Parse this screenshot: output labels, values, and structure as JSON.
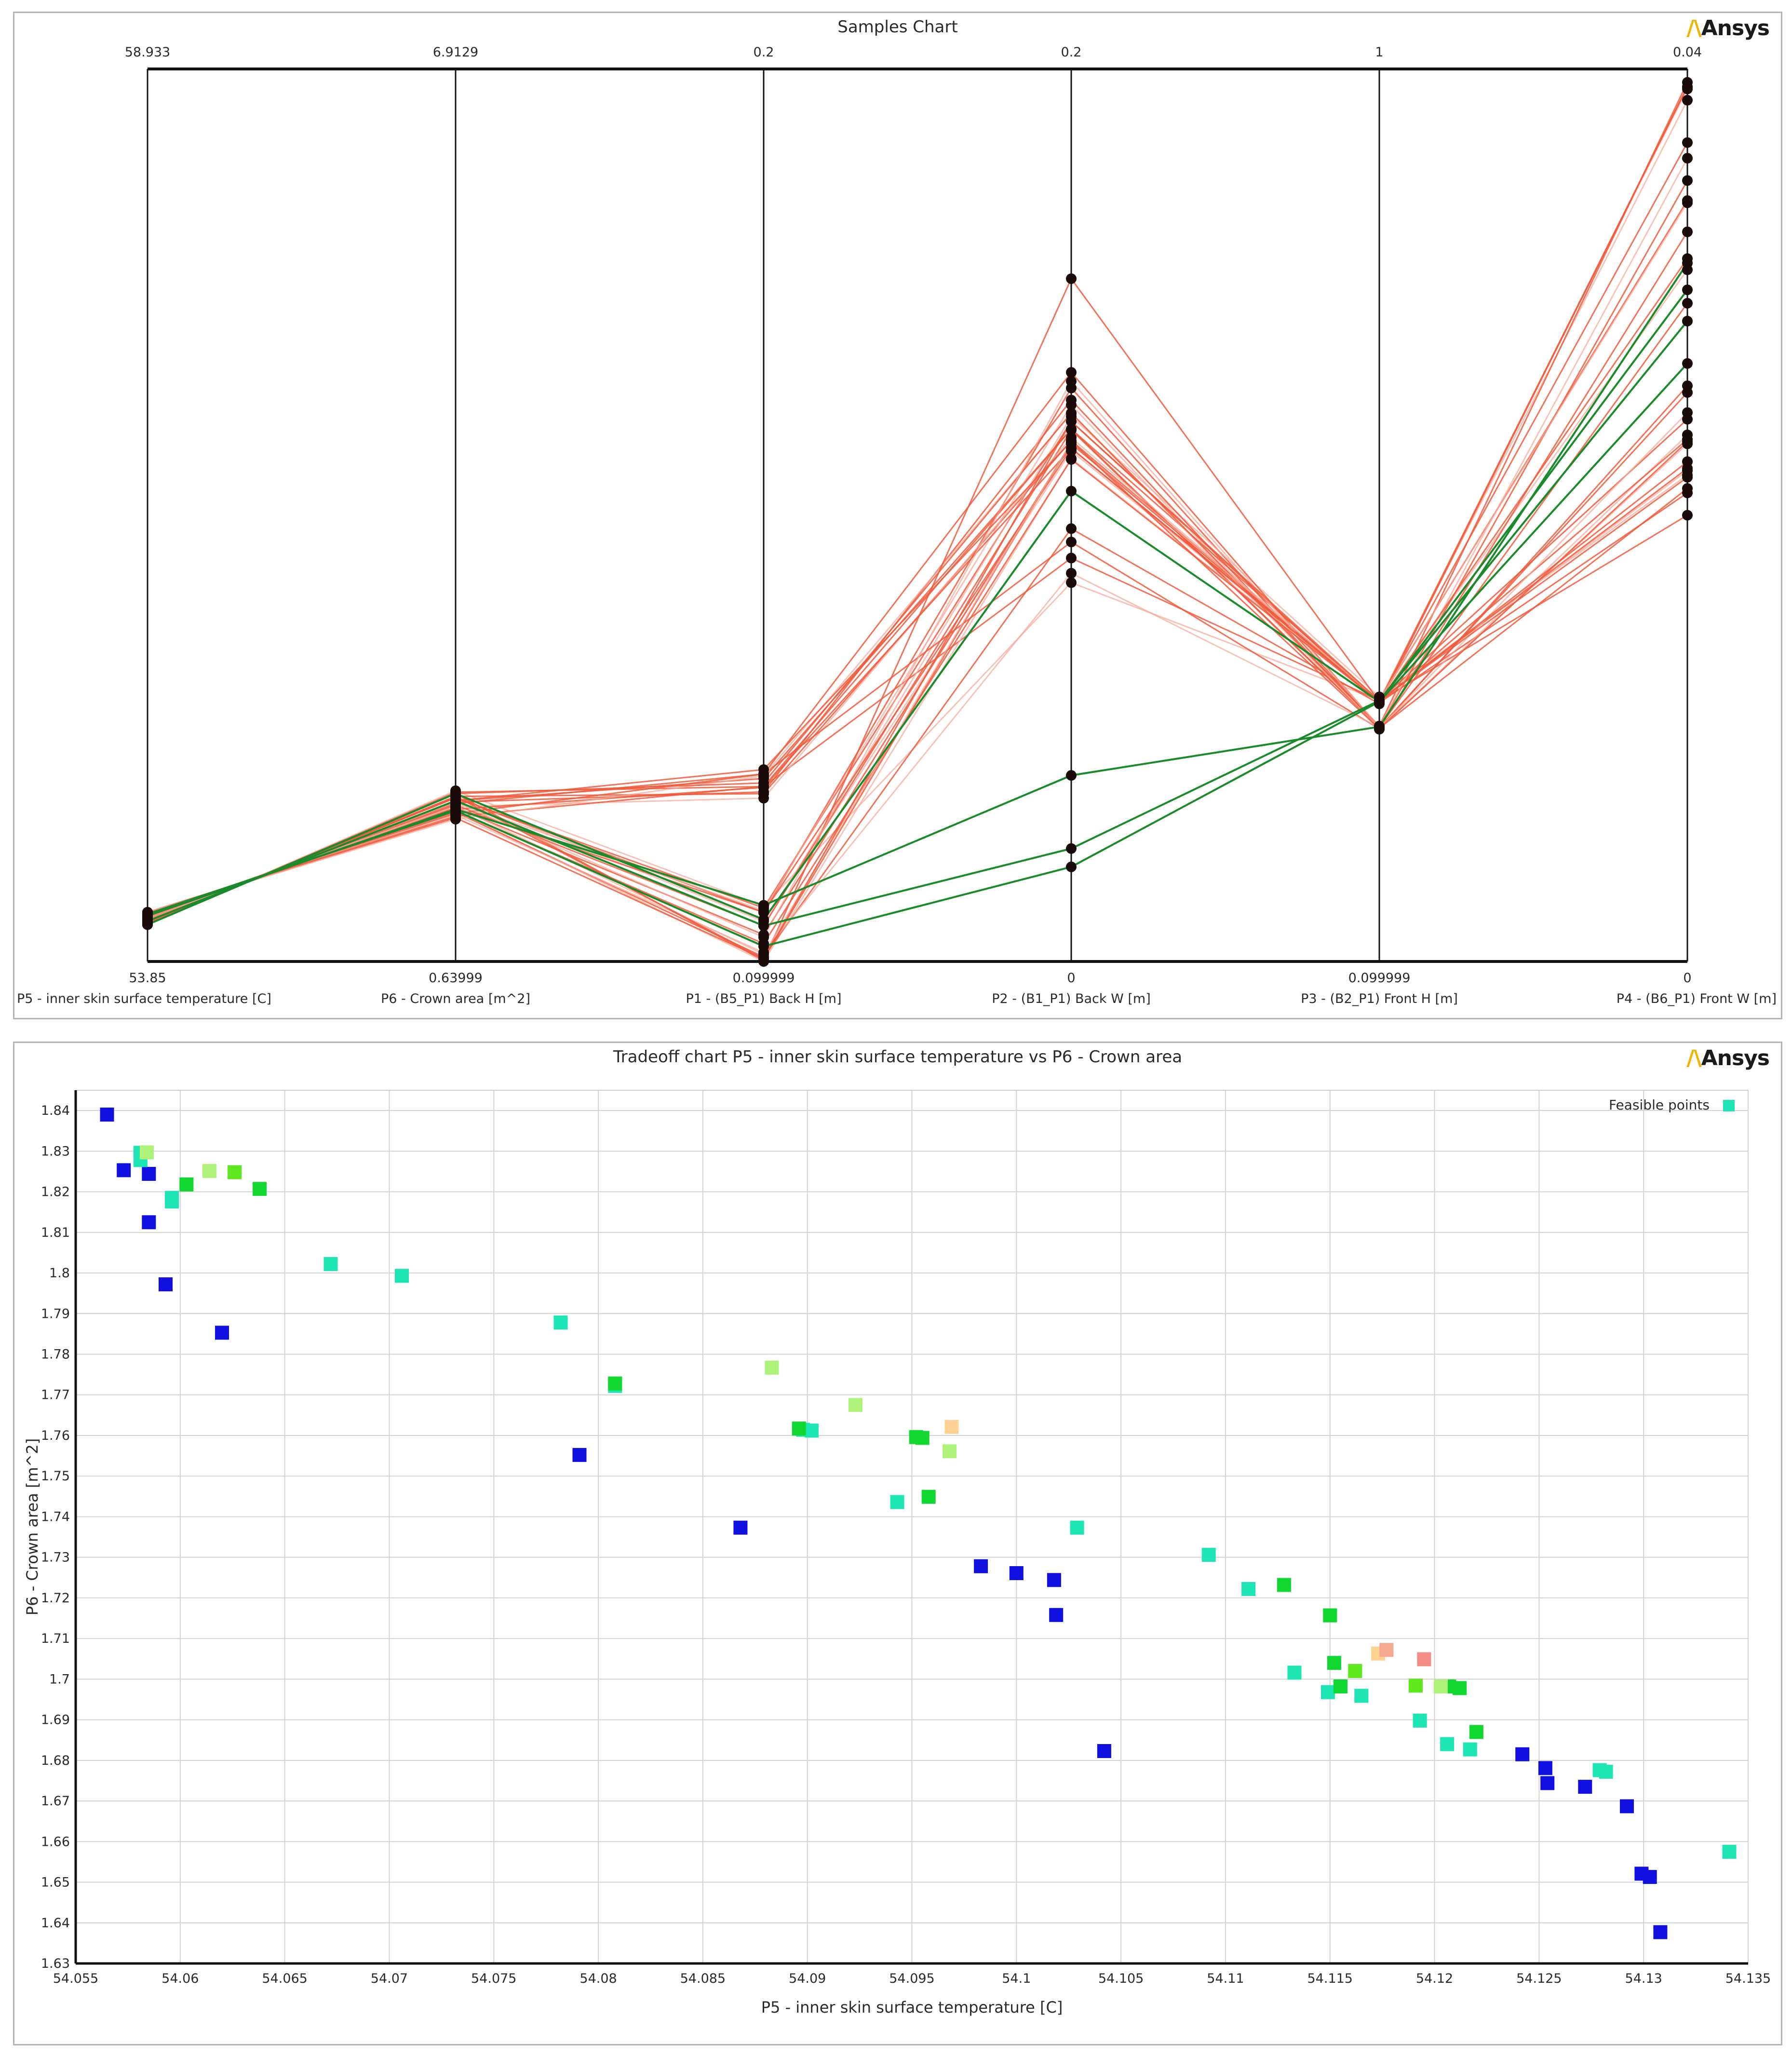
{
  "samples_chart": {
    "title": "Samples Chart",
    "logo": "Ansys",
    "line_colors": {
      "sample": "#ef5a3c",
      "sample_faint": "#f6a898",
      "highlight": "#1a8a2a",
      "point": "#1a0a0a"
    },
    "axes": [
      {
        "label": "P5 - inner skin surface temperature  [C]",
        "max": "58.933",
        "min": "53.85"
      },
      {
        "label": "P6 - Crown area  [m^2]",
        "max": "6.9129",
        "min": "0.63999"
      },
      {
        "label": "P1 - (B5_P1) Back H  [m]",
        "max": "0.2",
        "min": "0.099999"
      },
      {
        "label": "P2 - (B1_P1) Back W  [m]",
        "max": "0.2",
        "min": "0"
      },
      {
        "label": "P3 - (B2_P1) Front H  [m]",
        "max": "1",
        "min": "0.099999"
      },
      {
        "label": "P4 - (B6_P1) Front W  [m]",
        "max": "0.04",
        "min": "0"
      }
    ]
  },
  "chart_data": [
    {
      "type": "parallel-coordinates",
      "title": "Samples Chart",
      "axes": [
        {
          "name": "P5 - inner skin surface temperature  [C]",
          "range": [
            53.85,
            58.933
          ]
        },
        {
          "name": "P6 - Crown area  [m^2]",
          "range": [
            0.63999,
            6.9129
          ]
        },
        {
          "name": "P1 - (B5_P1) Back H  [m]",
          "range": [
            0.099999,
            0.2
          ]
        },
        {
          "name": "P2 - (B1_P1) Back W  [m]",
          "range": [
            0,
            0.2
          ]
        },
        {
          "name": "P3 - (B2_P1) Front H  [m]",
          "range": [
            0.099999,
            1
          ]
        },
        {
          "name": "P4 - (B6_P1) Front W  [m]",
          "range": [
            0,
            0.04
          ]
        }
      ],
      "samples": [
        [
          54.06,
          1.84,
          0.1062,
          0.0849,
          0.3633,
          0.0391
        ],
        [
          54.06,
          1.83,
          0.1196,
          0.0904,
          0.3631,
          0.0341
        ],
        [
          54.07,
          1.8,
          0.1188,
          0.1167,
          0.362,
          0.0367
        ],
        [
          54.07,
          1.8,
          0.1045,
          0.1144,
          0.3625,
          0.031
        ],
        [
          54.08,
          1.79,
          0.106,
          0.121,
          0.3608,
          0.021
        ],
        [
          54.08,
          1.79,
          0.1055,
          0.1285,
          0.3353,
          0.0212
        ],
        [
          54.09,
          1.77,
          0.104,
          0.1221,
          0.3668,
          0.0218
        ],
        [
          54.09,
          1.77,
          0.1205,
          0.1193,
          0.3363,
          0.0295
        ],
        [
          54.09,
          1.76,
          0.119,
          0.1258,
          0.335,
          0.0327
        ],
        [
          54.1,
          1.76,
          0.1057,
          0.1247,
          0.3342,
          0.0236
        ],
        [
          54.1,
          1.75,
          0.121,
          0.132,
          0.3361,
          0.035
        ],
        [
          54.1,
          1.74,
          0.104,
          0.1191,
          0.3358,
          0.0255
        ],
        [
          54.11,
          1.73,
          0.1183,
          0.1174,
          0.3625,
          0.0386
        ],
        [
          54.11,
          1.72,
          0.103,
          0.116,
          0.3627,
          0.02
        ],
        [
          54.11,
          1.71,
          0.1195,
          0.115,
          0.363,
          0.0243
        ],
        [
          54.12,
          1.7,
          0.1,
          0.1127,
          0.3632,
          0.022
        ],
        [
          54.12,
          1.69,
          0.1005,
          0.097,
          0.3598,
          0.0392
        ],
        [
          54.12,
          1.68,
          0.121,
          0.094,
          0.3346,
          0.0258
        ],
        [
          54.13,
          1.67,
          0.101,
          0.087,
          0.336,
          0.0232
        ],
        [
          54.13,
          1.66,
          0.1196,
          0.1193,
          0.363,
          0.0221
        ],
        [
          54.13,
          1.65,
          0.1003,
          0.1163,
          0.3612,
          0.0234
        ],
        [
          54.13,
          1.64,
          0.1208,
          0.1228,
          0.3354,
          0.0246
        ],
        [
          54.06,
          1.82,
          0.1001,
          0.153,
          0.362,
          0.0392
        ],
        [
          54.06,
          1.82,
          0.12,
          0.1229,
          0.3374,
          0.0394
        ],
        [
          54.09,
          1.76,
          0.1027,
          0.13,
          0.3368,
          0.036
        ],
        [
          54.12,
          1.7,
          0.102,
          0.1125,
          0.362,
          0.0224
        ],
        [
          54.11,
          1.72,
          0.1055,
          0.115,
          0.3617,
          0.0315
        ],
        [
          54.1,
          1.73,
          0.1008,
          0.1163,
          0.3636,
          0.034
        ],
        [
          54.08,
          1.77,
          0.1215,
          0.1166,
          0.3346,
          0.0233
        ],
        [
          54.07,
          1.8,
          0.1003,
          0.121,
          0.363,
          0.0217
        ]
      ],
      "highlighted": [
        [
          54.06,
          1.82,
          0.1047,
          0.1054,
          0.362,
          0.0268
        ],
        [
          54.08,
          1.77,
          0.104,
          0.0253,
          0.3631,
          0.0287
        ],
        [
          54.11,
          1.71,
          0.1063,
          0.0417,
          0.3367,
          0.0313
        ],
        [
          54.12,
          1.7,
          0.1017,
          0.0212,
          0.362,
          0.0301
        ]
      ]
    },
    {
      "type": "scatter",
      "title": "Tradeoff chart P5 - inner skin surface temperature vs P6 - Crown area",
      "xlabel": "P5 - inner skin surface temperature  [C]",
      "ylabel": "P6 - Crown area  [m^2]",
      "xlim": [
        54.055,
        54.135
      ],
      "ylim": [
        1.63,
        1.845
      ],
      "xticks": [
        54.055,
        54.06,
        54.065,
        54.07,
        54.075,
        54.08,
        54.085,
        54.09,
        54.095,
        54.1,
        54.105,
        54.11,
        54.115,
        54.12,
        54.125,
        54.13,
        54.135
      ],
      "yticks": [
        1.63,
        1.64,
        1.65,
        1.66,
        1.67,
        1.68,
        1.69,
        1.7,
        1.71,
        1.72,
        1.73,
        1.74,
        1.75,
        1.76,
        1.77,
        1.78,
        1.79,
        1.8,
        1.81,
        1.82,
        1.83,
        1.84
      ],
      "legend": {
        "label": "Feasible points",
        "color": "#1ee5b4",
        "position": "top-right"
      },
      "grid": true,
      "points": [
        {
          "x": 54.0565,
          "y": 1.839,
          "color": "#1010e0"
        },
        {
          "x": 54.0573,
          "y": 1.8253,
          "color": "#1010e0"
        },
        {
          "x": 54.0585,
          "y": 1.8244,
          "color": "#1010e0"
        },
        {
          "x": 54.0585,
          "y": 1.8125,
          "color": "#1010e0"
        },
        {
          "x": 54.0593,
          "y": 1.7972,
          "color": "#1010e0"
        },
        {
          "x": 54.062,
          "y": 1.7853,
          "color": "#1010e0"
        },
        {
          "x": 54.0791,
          "y": 1.7552,
          "color": "#1010e0"
        },
        {
          "x": 54.0868,
          "y": 1.7373,
          "color": "#1010e0"
        },
        {
          "x": 54.0983,
          "y": 1.7278,
          "color": "#1010e0"
        },
        {
          "x": 54.1,
          "y": 1.7261,
          "color": "#1010e0"
        },
        {
          "x": 54.1018,
          "y": 1.7244,
          "color": "#1010e0"
        },
        {
          "x": 54.1019,
          "y": 1.7158,
          "color": "#1010e0"
        },
        {
          "x": 54.1042,
          "y": 1.6823,
          "color": "#1010e0"
        },
        {
          "x": 54.1242,
          "y": 1.6815,
          "color": "#1010e0"
        },
        {
          "x": 54.1253,
          "y": 1.6781,
          "color": "#1010e0"
        },
        {
          "x": 54.1254,
          "y": 1.6744,
          "color": "#1010e0"
        },
        {
          "x": 54.1272,
          "y": 1.6735,
          "color": "#1010e0"
        },
        {
          "x": 54.1292,
          "y": 1.6687,
          "color": "#1010e0"
        },
        {
          "x": 54.1299,
          "y": 1.6521,
          "color": "#1010e0"
        },
        {
          "x": 54.1303,
          "y": 1.6513,
          "color": "#1010e0"
        },
        {
          "x": 54.1308,
          "y": 1.6377,
          "color": "#1010e0"
        },
        {
          "x": 54.0581,
          "y": 1.8296,
          "color": "#1ee5b4"
        },
        {
          "x": 54.0581,
          "y": 1.8278,
          "color": "#1ee5b4"
        },
        {
          "x": 54.0596,
          "y": 1.8185,
          "color": "#1ee5b4"
        },
        {
          "x": 54.0596,
          "y": 1.8176,
          "color": "#1ee5b4"
        },
        {
          "x": 54.0672,
          "y": 1.8022,
          "color": "#1ee5b4"
        },
        {
          "x": 54.0706,
          "y": 1.7993,
          "color": "#1ee5b4"
        },
        {
          "x": 54.0782,
          "y": 1.7878,
          "color": "#1ee5b4"
        },
        {
          "x": 54.0808,
          "y": 1.7722,
          "color": "#1ee5b4"
        },
        {
          "x": 54.0898,
          "y": 1.7614,
          "color": "#1ee5b4"
        },
        {
          "x": 54.0902,
          "y": 1.7612,
          "color": "#1ee5b4"
        },
        {
          "x": 54.0943,
          "y": 1.7436,
          "color": "#1ee5b4"
        },
        {
          "x": 54.1029,
          "y": 1.7373,
          "color": "#1ee5b4"
        },
        {
          "x": 54.1092,
          "y": 1.7306,
          "color": "#1ee5b4"
        },
        {
          "x": 54.1111,
          "y": 1.7222,
          "color": "#1ee5b4"
        },
        {
          "x": 54.1133,
          "y": 1.7016,
          "color": "#1ee5b4"
        },
        {
          "x": 54.1149,
          "y": 1.6968,
          "color": "#1ee5b4"
        },
        {
          "x": 54.1165,
          "y": 1.6959,
          "color": "#1ee5b4"
        },
        {
          "x": 54.1193,
          "y": 1.6898,
          "color": "#1ee5b4"
        },
        {
          "x": 54.1206,
          "y": 1.684,
          "color": "#1ee5b4"
        },
        {
          "x": 54.1217,
          "y": 1.6827,
          "color": "#1ee5b4"
        },
        {
          "x": 54.1279,
          "y": 1.6776,
          "color": "#1ee5b4"
        },
        {
          "x": 54.1282,
          "y": 1.6772,
          "color": "#1ee5b4"
        },
        {
          "x": 54.1341,
          "y": 1.6575,
          "color": "#1ee5b4"
        },
        {
          "x": 54.0603,
          "y": 1.8218,
          "color": "#10d830"
        },
        {
          "x": 54.0638,
          "y": 1.8207,
          "color": "#10d830"
        },
        {
          "x": 54.0808,
          "y": 1.7728,
          "color": "#10d830"
        },
        {
          "x": 54.0896,
          "y": 1.7617,
          "color": "#10d830"
        },
        {
          "x": 54.0952,
          "y": 1.7596,
          "color": "#10d830"
        },
        {
          "x": 54.0955,
          "y": 1.7594,
          "color": "#10d830"
        },
        {
          "x": 54.0958,
          "y": 1.7449,
          "color": "#10d830"
        },
        {
          "x": 54.1128,
          "y": 1.7232,
          "color": "#10d830"
        },
        {
          "x": 54.115,
          "y": 1.7157,
          "color": "#10d830"
        },
        {
          "x": 54.1152,
          "y": 1.704,
          "color": "#10d830"
        },
        {
          "x": 54.1155,
          "y": 1.6982,
          "color": "#10d830"
        },
        {
          "x": 54.1207,
          "y": 1.6982,
          "color": "#10d830"
        },
        {
          "x": 54.1212,
          "y": 1.6978,
          "color": "#10d830"
        },
        {
          "x": 54.122,
          "y": 1.687,
          "color": "#10d830"
        },
        {
          "x": 54.0626,
          "y": 1.8248,
          "color": "#5ee81e"
        },
        {
          "x": 54.1162,
          "y": 1.702,
          "color": "#5ee81e"
        },
        {
          "x": 54.1191,
          "y": 1.6984,
          "color": "#5ee81e"
        },
        {
          "x": 54.0584,
          "y": 1.8297,
          "color": "#aef27a"
        },
        {
          "x": 54.0614,
          "y": 1.8251,
          "color": "#aef27a"
        },
        {
          "x": 54.0883,
          "y": 1.7767,
          "color": "#aef27a"
        },
        {
          "x": 54.0923,
          "y": 1.7675,
          "color": "#aef27a"
        },
        {
          "x": 54.0968,
          "y": 1.7561,
          "color": "#aef27a"
        },
        {
          "x": 54.1203,
          "y": 1.6982,
          "color": "#aef27a"
        },
        {
          "x": 54.0969,
          "y": 1.7621,
          "color": "#ffd294"
        },
        {
          "x": 54.1173,
          "y": 1.7063,
          "color": "#ffd294"
        },
        {
          "x": 54.1177,
          "y": 1.7072,
          "color": "#f7a890"
        },
        {
          "x": 54.1195,
          "y": 1.7049,
          "color": "#f48c86"
        }
      ]
    }
  ],
  "tradeoff_chart": {
    "title": "Tradeoff chart P5 - inner skin surface temperature vs P6 - Crown area",
    "logo": "Ansys",
    "xlabel": "P5 - inner skin surface temperature  [C]",
    "ylabel": "P6 - Crown area  [m^2]",
    "legend_label": "Feasible points",
    "xtick_labels": [
      "54.055",
      "54.06",
      "54.065",
      "54.07",
      "54.075",
      "54.08",
      "54.085",
      "54.09",
      "54.095",
      "54.1",
      "54.105",
      "54.11",
      "54.115",
      "54.12",
      "54.125",
      "54.13",
      "54.135"
    ],
    "ytick_labels": [
      "1.63",
      "1.64",
      "1.65",
      "1.66",
      "1.67",
      "1.68",
      "1.69",
      "1.7",
      "1.71",
      "1.72",
      "1.73",
      "1.74",
      "1.75",
      "1.76",
      "1.77",
      "1.78",
      "1.79",
      "1.8",
      "1.81",
      "1.82",
      "1.83",
      "1.84"
    ]
  }
}
